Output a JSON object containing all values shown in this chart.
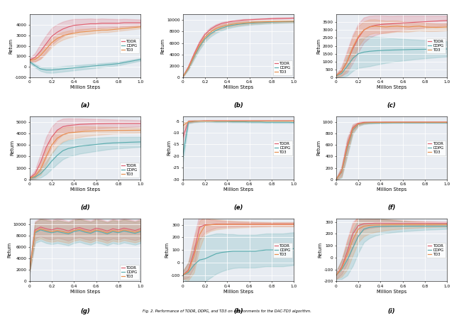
{
  "figure_caption": "Fig. 2. Performance of TDDR, DDPG, and TD3 on environments for the DAC-TD3 algorithm.",
  "algorithms": [
    "TDDR",
    "DDPG",
    "TD3"
  ],
  "colors": {
    "TDDR": "#e06070",
    "DDPG": "#5aacae",
    "TD3": "#e89050"
  },
  "x_label": "Million Steps",
  "y_label": "Return",
  "subplots": [
    {
      "label": "(a)",
      "ylim": [
        -1000,
        5000
      ],
      "yticks": [
        -1000,
        0,
        1000,
        2000,
        3000,
        4000
      ],
      "legend_loc": "center right",
      "TDDR_mean": [
        650,
        900,
        1500,
        2200,
        2900,
        3300,
        3600,
        3800,
        3950,
        4000,
        4050,
        4100,
        4100,
        4150,
        4150,
        4150,
        4150,
        4200,
        4200,
        4200,
        4200
      ],
      "TDDR_std": [
        150,
        400,
        700,
        800,
        800,
        750,
        700,
        650,
        600,
        550,
        520,
        490,
        460,
        440,
        420,
        400,
        380,
        360,
        340,
        320,
        300
      ],
      "DDPG_mean": [
        500,
        100,
        -200,
        -300,
        -300,
        -250,
        -200,
        -150,
        -100,
        -50,
        0,
        50,
        100,
        150,
        200,
        250,
        300,
        400,
        500,
        600,
        700
      ],
      "DDPG_std": [
        100,
        150,
        200,
        250,
        280,
        270,
        260,
        250,
        240,
        230,
        220,
        210,
        200,
        190,
        180,
        170,
        160,
        150,
        140,
        130,
        120
      ],
      "TD3_mean": [
        600,
        700,
        1100,
        1700,
        2300,
        2700,
        2950,
        3100,
        3200,
        3300,
        3350,
        3400,
        3450,
        3500,
        3500,
        3550,
        3600,
        3650,
        3700,
        3750,
        3800
      ],
      "TD3_std": [
        100,
        200,
        350,
        420,
        430,
        400,
        370,
        340,
        310,
        290,
        270,
        250,
        230,
        210,
        200,
        190,
        180,
        170,
        160,
        150,
        140
      ]
    },
    {
      "label": "(b)",
      "ylim": [
        0,
        11000
      ],
      "yticks": [
        0,
        2000,
        4000,
        6000,
        8000,
        10000
      ],
      "legend_loc": "lower right",
      "TDDR_mean": [
        100,
        1800,
        4000,
        6000,
        7500,
        8400,
        9000,
        9400,
        9600,
        9800,
        9900,
        10000,
        10050,
        10100,
        10150,
        10200,
        10250,
        10280,
        10300,
        10320,
        10350
      ],
      "TDDR_std": [
        50,
        200,
        350,
        400,
        380,
        330,
        280,
        240,
        210,
        190,
        175,
        165,
        155,
        148,
        141,
        134,
        127,
        120,
        113,
        108,
        103
      ],
      "DDPG_mean": [
        100,
        1500,
        3500,
        5300,
        6700,
        7600,
        8200,
        8600,
        8900,
        9100,
        9250,
        9350,
        9430,
        9500,
        9550,
        9600,
        9640,
        9670,
        9700,
        9720,
        9740
      ],
      "DDPG_std": [
        50,
        200,
        400,
        500,
        520,
        490,
        450,
        410,
        380,
        350,
        330,
        310,
        290,
        270,
        255,
        240,
        228,
        216,
        206,
        196,
        188
      ],
      "TD3_mean": [
        100,
        1600,
        3700,
        5600,
        7000,
        7900,
        8500,
        8850,
        9100,
        9280,
        9400,
        9490,
        9560,
        9620,
        9660,
        9700,
        9730,
        9750,
        9770,
        9790,
        9810
      ],
      "TD3_std": [
        50,
        190,
        370,
        460,
        480,
        450,
        410,
        380,
        350,
        330,
        310,
        292,
        274,
        258,
        244,
        230,
        218,
        206,
        196,
        186,
        178
      ]
    },
    {
      "label": "(c)",
      "ylim": [
        0,
        4000
      ],
      "yticks": [
        0,
        500,
        1000,
        1500,
        2000,
        2500,
        3000,
        3500
      ],
      "legend_loc": "center right",
      "TDDR_mean": [
        100,
        400,
        1000,
        1800,
        2500,
        3000,
        3200,
        3300,
        3350,
        3380,
        3400,
        3430,
        3450,
        3470,
        3490,
        3510,
        3530,
        3550,
        3570,
        3590,
        3610
      ],
      "TDDR_std": [
        80,
        300,
        700,
        900,
        900,
        800,
        700,
        620,
        570,
        530,
        500,
        480,
        460,
        440,
        420,
        400,
        380,
        360,
        340,
        320,
        300
      ],
      "DDPG_mean": [
        80,
        250,
        700,
        1200,
        1500,
        1600,
        1650,
        1680,
        1700,
        1720,
        1730,
        1740,
        1750,
        1760,
        1770,
        1775,
        1780,
        1785,
        1790,
        1795,
        1800
      ],
      "DDPG_std": [
        60,
        250,
        600,
        800,
        900,
        950,
        950,
        900,
        850,
        800,
        760,
        720,
        690,
        660,
        630,
        600,
        575,
        550,
        525,
        502,
        480
      ],
      "TD3_mean": [
        100,
        350,
        1000,
        1900,
        2600,
        3000,
        3200,
        3250,
        3220,
        3200,
        3230,
        3250,
        3220,
        3200,
        3230,
        3250,
        3200,
        3180,
        3170,
        3180,
        3200
      ],
      "TD3_std": [
        80,
        250,
        550,
        680,
        650,
        550,
        470,
        430,
        410,
        390,
        370,
        350,
        330,
        310,
        293,
        276,
        261,
        247,
        234,
        222,
        211
      ]
    },
    {
      "label": "(d)",
      "ylim": [
        0,
        5500
      ],
      "yticks": [
        0,
        1000,
        2000,
        3000,
        4000,
        5000
      ],
      "legend_loc": "lower right",
      "TDDR_mean": [
        100,
        500,
        1500,
        2800,
        3700,
        4300,
        4600,
        4700,
        4750,
        4800,
        4820,
        4840,
        4850,
        4860,
        4870,
        4875,
        4878,
        4880,
        4882,
        4884,
        4885
      ],
      "TDDR_std": [
        80,
        300,
        700,
        900,
        900,
        800,
        700,
        620,
        560,
        510,
        475,
        445,
        418,
        394,
        372,
        352,
        334,
        317,
        301,
        286,
        272
      ],
      "DDPG_mean": [
        80,
        200,
        500,
        1000,
        1600,
        2100,
        2500,
        2700,
        2800,
        2900,
        2950,
        3000,
        3050,
        3100,
        3150,
        3180,
        3200,
        3220,
        3240,
        3255,
        3270
      ],
      "DDPG_std": [
        60,
        150,
        350,
        550,
        700,
        750,
        750,
        720,
        690,
        660,
        630,
        605,
        580,
        558,
        537,
        517,
        499,
        482,
        466,
        451,
        437
      ],
      "TD3_mean": [
        80,
        300,
        900,
        2000,
        3000,
        3600,
        3900,
        4050,
        4100,
        4150,
        4200,
        4220,
        4240,
        4250,
        4260,
        4270,
        4275,
        4280,
        4285,
        4290,
        4295
      ],
      "TD3_std": [
        60,
        200,
        500,
        700,
        750,
        680,
        610,
        560,
        510,
        467,
        429,
        396,
        366,
        339,
        315,
        293,
        274,
        256,
        240,
        225,
        212
      ]
    },
    {
      "label": "(e)",
      "ylim": [
        -30,
        -3
      ],
      "yticks": [
        -30,
        -25,
        -20,
        -15,
        -10,
        -5
      ],
      "legend_loc": "center right",
      "TDDR_mean": [
        -12,
        -5.2,
        -5.0,
        -5.0,
        -4.9,
        -4.9,
        -4.9,
        -4.9,
        -4.9,
        -4.9,
        -4.9,
        -4.9,
        -4.9,
        -4.9,
        -4.9,
        -4.9,
        -4.9,
        -4.9,
        -4.9,
        -4.9,
        -4.9
      ],
      "TDDR_std": [
        2.0,
        0.5,
        0.3,
        0.2,
        0.2,
        0.2,
        0.2,
        0.2,
        0.2,
        0.2,
        0.2,
        0.2,
        0.2,
        0.2,
        0.2,
        0.2,
        0.2,
        0.2,
        0.2,
        0.2,
        0.2
      ],
      "DDPG_mean": [
        -20,
        -5.5,
        -5.2,
        -5.1,
        -5.1,
        -5.1,
        -5.2,
        -5.2,
        -5.2,
        -5.3,
        -5.3,
        -5.3,
        -5.4,
        -5.4,
        -5.4,
        -5.5,
        -5.5,
        -5.5,
        -5.5,
        -5.5,
        -5.6
      ],
      "DDPG_std": [
        3.0,
        0.6,
        0.4,
        0.3,
        0.3,
        0.3,
        0.3,
        0.3,
        0.3,
        0.3,
        0.3,
        0.3,
        0.3,
        0.3,
        0.3,
        0.3,
        0.3,
        0.3,
        0.3,
        0.3,
        0.3
      ],
      "TD3_mean": [
        -7,
        -5.3,
        -5.1,
        -5.0,
        -5.0,
        -5.0,
        -5.0,
        -5.0,
        -5.0,
        -5.0,
        -5.0,
        -5.0,
        -5.0,
        -5.0,
        -5.0,
        -5.0,
        -5.0,
        -5.0,
        -5.0,
        -5.0,
        -5.0
      ],
      "TD3_std": [
        1.5,
        0.4,
        0.3,
        0.2,
        0.2,
        0.2,
        0.2,
        0.2,
        0.2,
        0.2,
        0.2,
        0.2,
        0.2,
        0.2,
        0.2,
        0.2,
        0.2,
        0.2,
        0.2,
        0.2,
        0.2
      ]
    },
    {
      "label": "(f)",
      "ylim": [
        0,
        1100
      ],
      "yticks": [
        0,
        200,
        400,
        600,
        800,
        1000
      ],
      "legend_loc": "center right",
      "TDDR_mean": [
        0,
        150,
        600,
        900,
        980,
        995,
        998,
        999,
        999,
        1000,
        1000,
        1000,
        1000,
        1000,
        1000,
        1000,
        1000,
        1000,
        1000,
        1000,
        1000
      ],
      "TDDR_std": [
        10,
        80,
        120,
        60,
        25,
        15,
        10,
        8,
        7,
        6,
        5,
        5,
        5,
        5,
        5,
        5,
        5,
        5,
        5,
        5,
        5
      ],
      "DDPG_mean": [
        0,
        120,
        530,
        860,
        960,
        980,
        985,
        987,
        988,
        989,
        990,
        990,
        990,
        990,
        990,
        990,
        990,
        990,
        990,
        990,
        990
      ],
      "DDPG_std": [
        10,
        90,
        130,
        70,
        30,
        18,
        13,
        10,
        9,
        8,
        7,
        6,
        6,
        6,
        6,
        6,
        6,
        6,
        6,
        6,
        6
      ],
      "TD3_mean": [
        0,
        130,
        560,
        880,
        967,
        987,
        992,
        994,
        995,
        996,
        996,
        997,
        997,
        997,
        997,
        997,
        997,
        997,
        997,
        997,
        997
      ],
      "TD3_std": [
        10,
        85,
        125,
        65,
        28,
        16,
        11,
        9,
        8,
        7,
        6,
        5,
        5,
        5,
        5,
        5,
        5,
        5,
        5,
        5,
        5
      ]
    },
    {
      "label": "(g)",
      "ylim": [
        0,
        11000
      ],
      "yticks": [
        0,
        2000,
        4000,
        6000,
        8000,
        10000
      ],
      "legend_loc": "lower right",
      "TDDR_mean": [
        2000,
        9000,
        9500,
        9200,
        9000,
        9300,
        9100,
        8800,
        9200,
        9400,
        9100,
        8900,
        9300,
        9100,
        8800,
        9200,
        9000,
        9300,
        9100,
        8900,
        9200
      ],
      "TDDR_std": [
        500,
        1500,
        1600,
        1700,
        1700,
        1700,
        1700,
        1700,
        1700,
        1700,
        1700,
        1700,
        1700,
        1700,
        1700,
        1700,
        1700,
        1700,
        1700,
        1700,
        1700
      ],
      "DDPG_mean": [
        1800,
        8500,
        9000,
        8700,
        8500,
        8700,
        8500,
        8300,
        8700,
        8900,
        8600,
        8400,
        8800,
        8600,
        8300,
        8700,
        8500,
        8800,
        8600,
        8400,
        8700
      ],
      "DDPG_std": [
        500,
        1800,
        1900,
        2000,
        2000,
        2000,
        2000,
        2000,
        2000,
        2000,
        2000,
        2000,
        2000,
        2000,
        2000,
        2000,
        2000,
        2000,
        2000,
        2000,
        2000
      ],
      "TD3_mean": [
        1900,
        8700,
        9200,
        8900,
        8700,
        8900,
        8700,
        8500,
        8900,
        9100,
        8800,
        8600,
        9000,
        8800,
        8500,
        8900,
        8700,
        9000,
        8800,
        8600,
        8900
      ],
      "TD3_std": [
        500,
        1600,
        1700,
        1800,
        1800,
        1800,
        1800,
        1800,
        1800,
        1800,
        1800,
        1800,
        1800,
        1800,
        1800,
        1800,
        1800,
        1800,
        1800,
        1800,
        1800
      ]
    },
    {
      "label": "(h)",
      "ylim": [
        -150,
        350
      ],
      "yticks": [
        -100,
        0,
        100,
        200,
        300
      ],
      "legend_loc": "center right",
      "TDDR_mean": [
        -100,
        -60,
        80,
        280,
        300,
        300,
        305,
        305,
        305,
        305,
        305,
        305,
        305,
        305,
        305,
        305,
        305,
        305,
        305,
        305,
        305
      ],
      "TDDR_std": [
        30,
        60,
        120,
        100,
        60,
        40,
        30,
        25,
        22,
        20,
        18,
        17,
        16,
        15,
        14,
        13,
        12,
        12,
        12,
        12,
        12
      ],
      "DDPG_mean": [
        -100,
        -80,
        -20,
        20,
        30,
        50,
        70,
        80,
        85,
        90,
        90,
        90,
        90,
        90,
        95,
        100,
        100,
        100,
        100,
        105,
        110
      ],
      "DDPG_std": [
        30,
        80,
        150,
        180,
        180,
        170,
        160,
        150,
        140,
        135,
        130,
        130,
        130,
        130,
        130,
        130,
        130,
        130,
        130,
        130,
        130
      ],
      "TD3_mean": [
        -100,
        -70,
        50,
        220,
        295,
        300,
        302,
        303,
        303,
        303,
        303,
        303,
        303,
        303,
        303,
        303,
        303,
        303,
        303,
        303,
        303
      ],
      "TD3_std": [
        30,
        70,
        130,
        110,
        70,
        50,
        40,
        35,
        30,
        28,
        26,
        24,
        22,
        20,
        19,
        18,
        17,
        17,
        17,
        17,
        17
      ]
    },
    {
      "label": "(i)",
      "ylim": [
        -200,
        330
      ],
      "yticks": [
        -200,
        -100,
        0,
        100,
        200,
        300
      ],
      "legend_loc": "center right",
      "TDDR_mean": [
        -150,
        -80,
        50,
        200,
        270,
        285,
        288,
        290,
        290,
        290,
        290,
        290,
        290,
        290,
        290,
        290,
        290,
        290,
        290,
        290,
        290
      ],
      "TDDR_std": [
        30,
        60,
        100,
        100,
        70,
        50,
        40,
        35,
        30,
        28,
        26,
        24,
        22,
        20,
        19,
        18,
        17,
        16,
        15,
        14,
        13
      ],
      "DDPG_mean": [
        -150,
        -100,
        -20,
        80,
        180,
        240,
        255,
        260,
        262,
        263,
        264,
        264,
        264,
        264,
        264,
        264,
        264,
        264,
        264,
        264,
        264
      ],
      "DDPG_std": [
        30,
        80,
        130,
        150,
        140,
        110,
        90,
        75,
        65,
        58,
        52,
        47,
        43,
        39,
        36,
        33,
        30,
        28,
        26,
        24,
        22
      ],
      "TD3_mean": [
        -150,
        -90,
        20,
        150,
        240,
        265,
        272,
        275,
        276,
        277,
        278,
        278,
        278,
        278,
        278,
        278,
        278,
        278,
        278,
        278,
        278
      ],
      "TD3_std": [
        30,
        70,
        120,
        130,
        110,
        85,
        70,
        60,
        53,
        47,
        42,
        38,
        34,
        31,
        28,
        26,
        24,
        22,
        20,
        19,
        18
      ]
    }
  ]
}
